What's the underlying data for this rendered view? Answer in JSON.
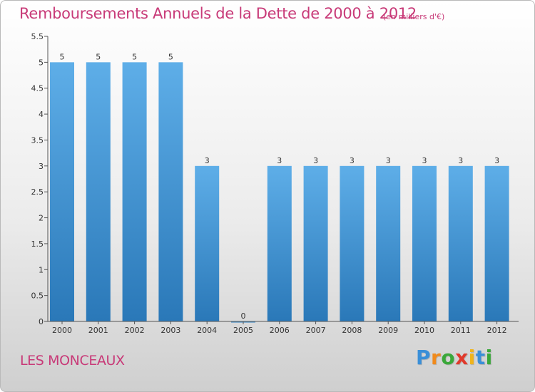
{
  "title": "Remboursements Annuels de la Dette de 2000 à 2012",
  "subtitle": "(en milliers d'€)",
  "place": "LES MONCEAUX",
  "brand": {
    "letters": [
      "P",
      "r",
      "o",
      "x",
      "i",
      "t",
      "i"
    ],
    "colors": [
      "#3a8fd8",
      "#f08a1c",
      "#3aa83a",
      "#e0392b",
      "#f0b41c",
      "#3a8fd8",
      "#3aa83a"
    ]
  },
  "colors": {
    "bar_top": "#5eaee8",
    "bar_bottom": "#2a78b8",
    "text": "#c83a78",
    "axis_text": "#333333"
  },
  "chart_data": {
    "type": "bar",
    "categories": [
      "2000",
      "2001",
      "2002",
      "2003",
      "2004",
      "2005",
      "2006",
      "2007",
      "2008",
      "2009",
      "2010",
      "2011",
      "2012"
    ],
    "values": [
      5,
      5,
      5,
      5,
      3,
      0,
      3,
      3,
      3,
      3,
      3,
      3,
      3
    ],
    "data_labels": [
      "5",
      "5",
      "5",
      "5",
      "3",
      "0",
      "3",
      "3",
      "3",
      "3",
      "3",
      "3",
      "3"
    ],
    "ylim": [
      0,
      5.5
    ],
    "yticks": [
      "0",
      "0.5",
      "1",
      "1.5",
      "2",
      "2.5",
      "3",
      "3.5",
      "4",
      "4.5",
      "5",
      "5.5"
    ],
    "grid": false,
    "legend": "none"
  }
}
